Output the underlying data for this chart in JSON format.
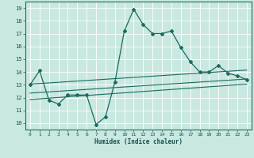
{
  "xlabel": "Humidex (Indice chaleur)",
  "bg_color": "#c8e8e0",
  "grid_color": "#b0d8d0",
  "line_color": "#1a6b60",
  "xlim": [
    -0.5,
    23.5
  ],
  "ylim": [
    9.5,
    19.5
  ],
  "xticks": [
    0,
    1,
    2,
    3,
    4,
    5,
    6,
    7,
    8,
    9,
    10,
    11,
    12,
    13,
    14,
    15,
    16,
    17,
    18,
    19,
    20,
    21,
    22,
    23
  ],
  "yticks": [
    10,
    11,
    12,
    13,
    14,
    15,
    16,
    17,
    18,
    19
  ],
  "main_x": [
    0,
    1,
    2,
    3,
    4,
    5,
    6,
    7,
    8,
    9,
    10,
    11,
    12,
    13,
    14,
    15,
    16,
    17,
    18,
    19,
    20,
    21,
    22,
    23
  ],
  "main_y": [
    13.0,
    14.1,
    11.8,
    11.5,
    12.2,
    12.2,
    12.2,
    9.9,
    10.5,
    13.2,
    17.2,
    18.9,
    17.7,
    17.0,
    17.0,
    17.2,
    15.9,
    14.8,
    14.0,
    14.0,
    14.5,
    13.9,
    13.7,
    13.4
  ],
  "line1_x": [
    0,
    23
  ],
  "line1_y": [
    13.05,
    14.15
  ],
  "line2_x": [
    0,
    23
  ],
  "line2_y": [
    12.35,
    13.45
  ],
  "line3_x": [
    0,
    23
  ],
  "line3_y": [
    11.85,
    13.05
  ]
}
